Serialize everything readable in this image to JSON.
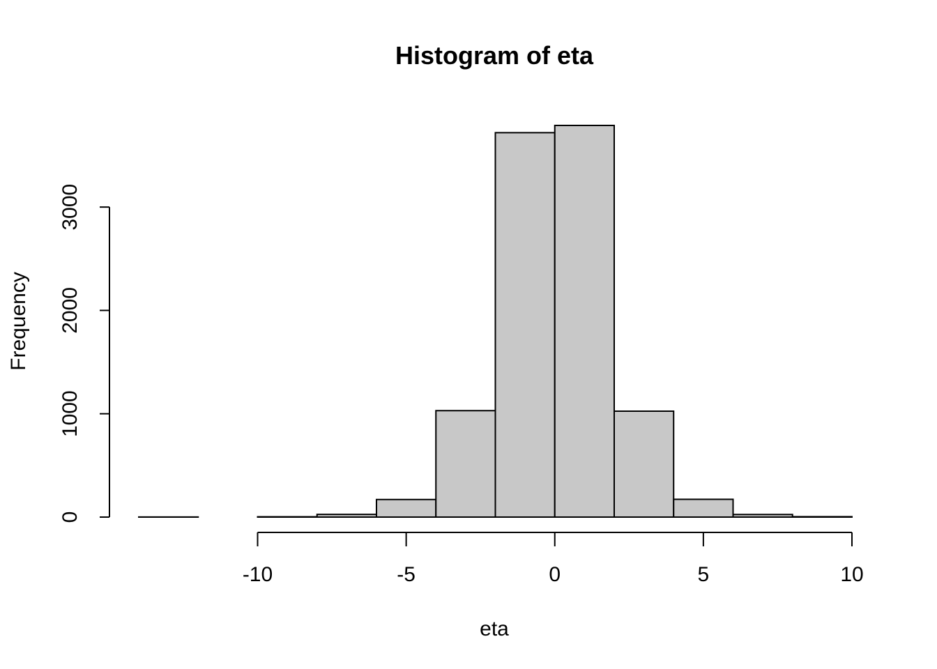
{
  "chart_data": {
    "type": "bar",
    "title": "Histogram of eta",
    "xlabel": "eta",
    "ylabel": "Frequency",
    "bar_color": "#c8c8c8",
    "edge_color": "#000000",
    "bins": [
      {
        "start": -14,
        "end": -12,
        "count": 1
      },
      {
        "start": -12,
        "end": -10,
        "count": 0
      },
      {
        "start": -10,
        "end": -8,
        "count": 3
      },
      {
        "start": -8,
        "end": -6,
        "count": 26
      },
      {
        "start": -6,
        "end": -4,
        "count": 170
      },
      {
        "start": -4,
        "end": -2,
        "count": 1030
      },
      {
        "start": -2,
        "end": 0,
        "count": 3720
      },
      {
        "start": 0,
        "end": 2,
        "count": 3790
      },
      {
        "start": 2,
        "end": 4,
        "count": 1025
      },
      {
        "start": 4,
        "end": 6,
        "count": 172
      },
      {
        "start": 6,
        "end": 8,
        "count": 25
      },
      {
        "start": 8,
        "end": 10,
        "count": 4
      }
    ],
    "xlim": [
      -14,
      10
    ],
    "ylim": [
      0,
      3790
    ],
    "x_ticks": [
      -10,
      -5,
      0,
      5,
      10
    ],
    "x_tick_labels": [
      "-10",
      "-5",
      "0",
      "5",
      "10"
    ],
    "y_ticks": [
      0,
      1000,
      2000,
      3000
    ],
    "y_tick_labels": [
      "0",
      "1000",
      "2000",
      "3000"
    ],
    "grid": false
  }
}
